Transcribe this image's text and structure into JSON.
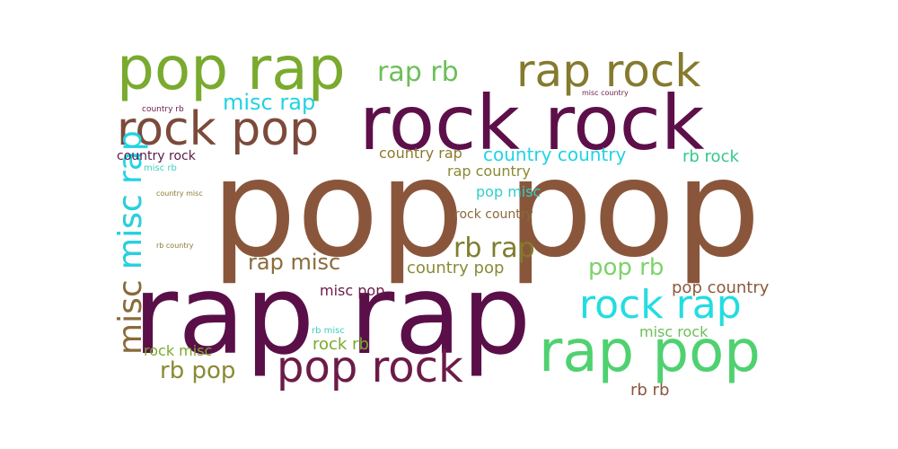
{
  "word_cloud": {
    "words": [
      {
        "text": "pop pop",
        "color": "#8a563b"
      },
      {
        "text": "rap rap",
        "color": "#5a0f48"
      },
      {
        "text": "rock rock",
        "color": "#5d0f4a"
      },
      {
        "text": "pop rap",
        "color": "#7aaa2e"
      },
      {
        "text": "rap pop",
        "color": "#4fd170"
      },
      {
        "text": "rap rock",
        "color": "#857a2e"
      },
      {
        "text": "rock pop",
        "color": "#7c4a3b"
      },
      {
        "text": "pop rock",
        "color": "#6c1b48"
      },
      {
        "text": "rock rap",
        "color": "#22dde0"
      },
      {
        "text": "misc misc",
        "color": "#8a6a3a"
      },
      {
        "text": "misc rap",
        "color": "#22d3e3"
      },
      {
        "text": "rap rb",
        "color": "#6bbf58"
      },
      {
        "text": "rb rap",
        "color": "#7f7d2c"
      },
      {
        "text": "rap misc",
        "color": "#8b6b3c"
      },
      {
        "text": "pop rb",
        "color": "#7dd36a"
      },
      {
        "text": "rb pop",
        "color": "#8a8a35"
      },
      {
        "text": "rock country",
        "color": "#8a6a3a"
      },
      {
        "text": "country country",
        "color": "#22d3e3"
      },
      {
        "text": "misc rap",
        "color": "#22d3e3"
      },
      {
        "text": "country rap",
        "color": "#8a7a2e"
      },
      {
        "text": "rap country",
        "color": "#8a8a35"
      },
      {
        "text": "pop misc",
        "color": "#2fcfc8"
      },
      {
        "text": "country pop",
        "color": "#8a8a35"
      },
      {
        "text": "rb rock",
        "color": "#32c98a"
      },
      {
        "text": "pop country",
        "color": "#8a5a3a"
      },
      {
        "text": "misc pop",
        "color": "#6a1a48"
      },
      {
        "text": "rock rb",
        "color": "#7aaa2e"
      },
      {
        "text": "misc rock",
        "color": "#6bbf58"
      },
      {
        "text": "rock misc",
        "color": "#7aaa2e"
      },
      {
        "text": "rb rb",
        "color": "#8a563b"
      },
      {
        "text": "country rock",
        "color": "#5a1a48"
      },
      {
        "text": "misc rb",
        "color": "#3fd1c0"
      },
      {
        "text": "country rb",
        "color": "#6a1a48"
      },
      {
        "text": "misc country",
        "color": "#6a1a48"
      },
      {
        "text": "country misc",
        "color": "#8a7a2e"
      },
      {
        "text": "rb country",
        "color": "#8a7a2e"
      },
      {
        "text": "rb misc",
        "color": "#3fd1c0"
      }
    ]
  }
}
